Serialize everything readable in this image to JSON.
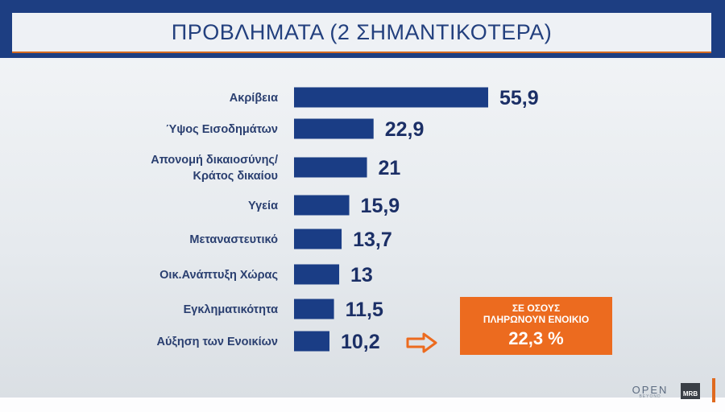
{
  "header": {
    "title": "ΠΡΟΒΛΗΜΑΤΑ (2 ΣΗΜΑΝΤΙΚΟΤΕΡΑ)"
  },
  "colors": {
    "header_bg": "#1d3e82",
    "bar": "#1a3d85",
    "accent": "#ec6b1f"
  },
  "chart_data": {
    "type": "bar",
    "orientation": "horizontal",
    "title": "ΠΡΟΒΛΗΜΑΤΑ (2 ΣΗΜΑΝΤΙΚΟΤΕΡΑ)",
    "categories": [
      [
        "Ακρίβεια"
      ],
      [
        "Ύψος Εισοδημάτων"
      ],
      [
        "Απονομή δικαιοσύνης/",
        "Κράτος δικαίου"
      ],
      [
        "Υγεία"
      ],
      [
        "Μεταναστευτικό"
      ],
      [
        "Οικ.Ανάπτυξη Χώρας"
      ],
      [
        "Εγκληματικότητα"
      ],
      [
        "Αύξηση των Ενοικίων"
      ]
    ],
    "values": [
      55.9,
      22.9,
      21,
      15.9,
      13.7,
      13,
      11.5,
      10.2
    ],
    "value_labels": [
      "55,9",
      "22,9",
      "21",
      "15,9",
      "13,7",
      "13",
      "11,5",
      "10,2"
    ],
    "xlim": [
      0,
      55.9
    ],
    "grid": false,
    "legend": "none"
  },
  "callout": {
    "line1": "ΣΕ ΟΣΟΥΣ",
    "line2": "ΠΛΗΡΩΝΟΥΝ ΕΝΟΙΚΙΟ",
    "value": "22,3 %",
    "arrow_icon": "arrow-right-icon"
  },
  "branding": {
    "logo_open": "OPEN",
    "logo_open_sub": "BEYOND",
    "logo_mrb": "MRB"
  }
}
